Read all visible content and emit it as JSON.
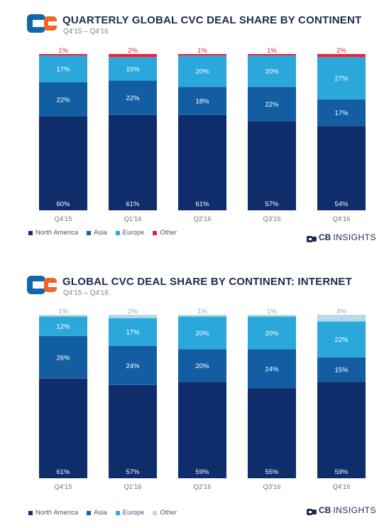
{
  "chart_data": [
    {
      "type": "bar",
      "stacked": true,
      "title": "QUARTERLY GLOBAL CVC DEAL SHARE BY CONTINENT",
      "subtitle": "Q4'15 – Q4'16",
      "categories": [
        "Q4'15",
        "Q1'16",
        "Q2'16",
        "Q3'16",
        "Q4'16"
      ],
      "series": [
        {
          "name": "North America",
          "values": [
            60,
            61,
            61,
            57,
            54
          ],
          "color": "#0f2d6b"
        },
        {
          "name": "Asia",
          "values": [
            22,
            22,
            18,
            22,
            17
          ],
          "color": "#135ea3"
        },
        {
          "name": "Europe",
          "values": [
            17,
            15,
            20,
            20,
            27
          ],
          "color": "#2aa8db"
        },
        {
          "name": "Other",
          "values": [
            1,
            2,
            1,
            1,
            2
          ],
          "color": "#e8233d"
        }
      ],
      "labels": [
        [
          "60%",
          "61%",
          "61%",
          "57%",
          "54%"
        ],
        [
          "22%",
          "22%",
          "18%",
          "22%",
          "17%"
        ],
        [
          "17%",
          "15%",
          "20%",
          "20%",
          "27%"
        ],
        [
          "1%",
          "2%",
          "1%",
          "1%",
          "2%"
        ]
      ],
      "ylim": [
        0,
        100
      ],
      "legend_position": "bottom-left"
    },
    {
      "type": "bar",
      "stacked": true,
      "title": "GLOBAL CVC DEAL SHARE BY CONTINENT: INTERNET",
      "subtitle": "Q4'15 – Q4'16",
      "categories": [
        "Q4'15",
        "Q1'16",
        "Q2'16",
        "Q3'16",
        "Q4'16"
      ],
      "series": [
        {
          "name": "North America",
          "values": [
            61,
            57,
            59,
            55,
            59
          ],
          "color": "#0f2d6b"
        },
        {
          "name": "Asia",
          "values": [
            26,
            24,
            20,
            24,
            15
          ],
          "color": "#135ea3"
        },
        {
          "name": "Europe",
          "values": [
            12,
            17,
            20,
            20,
            22
          ],
          "color": "#2aa8db"
        },
        {
          "name": "Other",
          "values": [
            1,
            2,
            1,
            1,
            4
          ],
          "color": "#b5dbe6"
        }
      ],
      "labels": [
        [
          "61%",
          "57%",
          "59%",
          "55%",
          "59%"
        ],
        [
          "26%",
          "24%",
          "20%",
          "24%",
          "15%"
        ],
        [
          "12%",
          "17%",
          "20%",
          "20%",
          "22%"
        ],
        [
          "1%",
          "2%",
          "1%",
          "1%",
          "4%"
        ]
      ],
      "ylim": [
        0,
        100
      ],
      "legend_position": "bottom-left"
    }
  ],
  "brand": {
    "bold": "CB",
    "light": "INSIGHTS"
  },
  "colors": {
    "logo_blue": "#1366a8",
    "logo_orange": "#f26522",
    "title": "#1a2c4e",
    "other_label_red": "#e8233d",
    "other_label_gray": "#9aa4b0"
  }
}
